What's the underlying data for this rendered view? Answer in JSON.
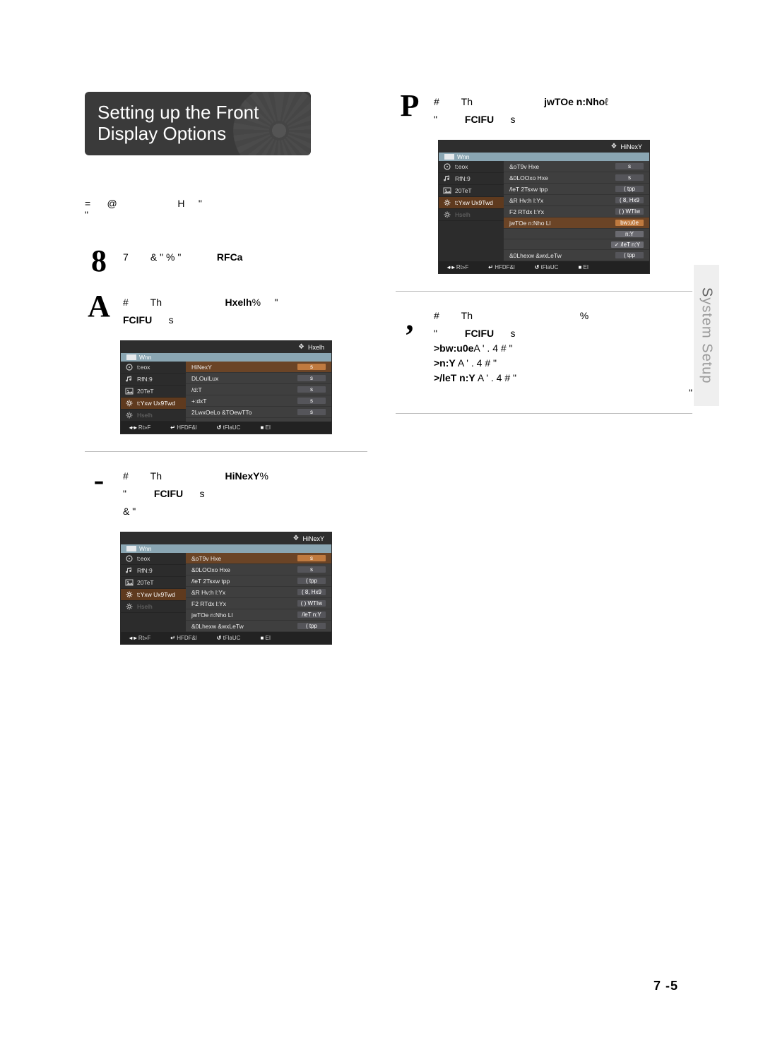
{
  "title_line1": "Setting up the Front",
  "title_line2": "Display Options",
  "intro_prefix": "=",
  "intro_at": "@",
  "intro_H": "H",
  "intro_q": "\"",
  "steps": {
    "s1": {
      "num": "8",
      "text_a": "7",
      "text_b": "& \"  % \"",
      "bold": "RFCa"
    },
    "s2": {
      "num": "A",
      "text_a": "#",
      "text_th": "Th",
      "bold": "Hxelh",
      "pct": "%",
      "q": "\"",
      "line2_a": "FCIFU",
      "line2_b": "s"
    },
    "s3": {
      "num": "-",
      "text_a": "#",
      "text_th": "Th",
      "bold": "HiNexY",
      "pct": "%",
      "line2_a": "\"",
      "line2_b": "FCIFU",
      "line2_c": "s",
      "line3": "&            \""
    },
    "s4": {
      "num": "P",
      "text_a": "#",
      "text_th": "Th",
      "bold": "jwTOe n:Nho",
      "tail": "ℓ",
      "line2_a": "\"",
      "line2_b": "FCIFU",
      "line2_c": "s"
    },
    "s5": {
      "num": ",",
      "text_a": "#",
      "text_th": "Th",
      "pct": "%",
      "line2_a": "\"",
      "line2_b": "FCIFU",
      "line2_c": "s",
      "opt1_label": ">bw:u0e",
      "opt1_rest": "A ' .     4    #      \"",
      "opt2_label": ">n:Y",
      "opt2_rest": " A ' .     4    #      \"",
      "opt3_label": ">/leT n:Y",
      "opt3_rest": "  A ' .     4    #      \"",
      "trail": "\""
    }
  },
  "osd_left": [
    {
      "label": "t:eox",
      "icon": "disc"
    },
    {
      "label": "RfN:9",
      "icon": "note"
    },
    {
      "label": "20TeT",
      "icon": "photo"
    },
    {
      "label": "t:Yxw Ux9Twd",
      "icon": "gear"
    },
    {
      "label": "Hselh",
      "icon": "cog",
      "mute": true
    }
  ],
  "osd1": {
    "header": "Hxelh",
    "crumb": "Wnn",
    "rows": [
      {
        "label": "HiNexY",
        "val": "s",
        "hi": true
      },
      {
        "label": "DLOuILux",
        "val": "s"
      },
      {
        "label": "/d:T",
        "val": "s"
      },
      {
        "label": "+:dxT",
        "val": "s"
      },
      {
        "label": "2LwxOeLo &TOewTTo",
        "val": "s"
      }
    ],
    "foot": [
      "Rt»F",
      "HFDF&l",
      "tFlaUC",
      "EI"
    ],
    "foot_icons": [
      "◂·▸",
      "↵",
      "↺",
      "■"
    ]
  },
  "osd2": {
    "header": "HiNexY",
    "crumb": "Wnn",
    "rows": [
      {
        "label": "&oT9v Hxe",
        "val": "s",
        "hi": true
      },
      {
        "label": "&0LOOxo Hxe",
        "val": "s"
      },
      {
        "label": "/leT 2Tsxw tpp",
        "val": "( tpp"
      },
      {
        "label": "&R Hv:h l:Yx",
        "val": "( 8, Hx9"
      },
      {
        "label": "F2 RTdx l:Yx",
        "val": "( ) WTIw"
      },
      {
        "label": "jwTOe n:Nho Ll",
        "val": "/leT n:Y"
      },
      {
        "label": "&0Lhexw &wxLeTw",
        "val": "( tpp"
      }
    ],
    "foot": [
      "Rt»F",
      "HFDF&l",
      "tFlaUC",
      "EI"
    ],
    "foot_icons": [
      "◂·▸",
      "↵",
      "↺",
      "■"
    ]
  },
  "osd3": {
    "header": "HiNexY",
    "crumb": "Wnn",
    "rows": [
      {
        "label": "&oT9v Hxe",
        "val": "s"
      },
      {
        "label": "&0LOOxo Hxe",
        "val": "s"
      },
      {
        "label": "/leT 2Tsxw tpp",
        "val": "( tpp"
      },
      {
        "label": "&R Hv:h l:Yx",
        "val": "( 8, Hx9"
      },
      {
        "label": "F2 RTdx l:Yx",
        "val": "( ) WTIw"
      },
      {
        "label": "jwTOe n:Nho Ll",
        "val": "bw:u0e",
        "hi": true,
        "options": [
          "n:Y",
          "/leT n:Y"
        ]
      },
      {
        "label": "&0Lhexw &wxLeTw",
        "val": "( tpp"
      }
    ],
    "foot": [
      "Rt»F",
      "HFDF&l",
      "tFlaUC",
      "EI"
    ],
    "foot_icons": [
      "◂·▸",
      "↵",
      "↺",
      "■"
    ]
  },
  "sidetab_lead": "S",
  "sidetab_rest": "ystem Setup",
  "pagenum": "7 -5"
}
